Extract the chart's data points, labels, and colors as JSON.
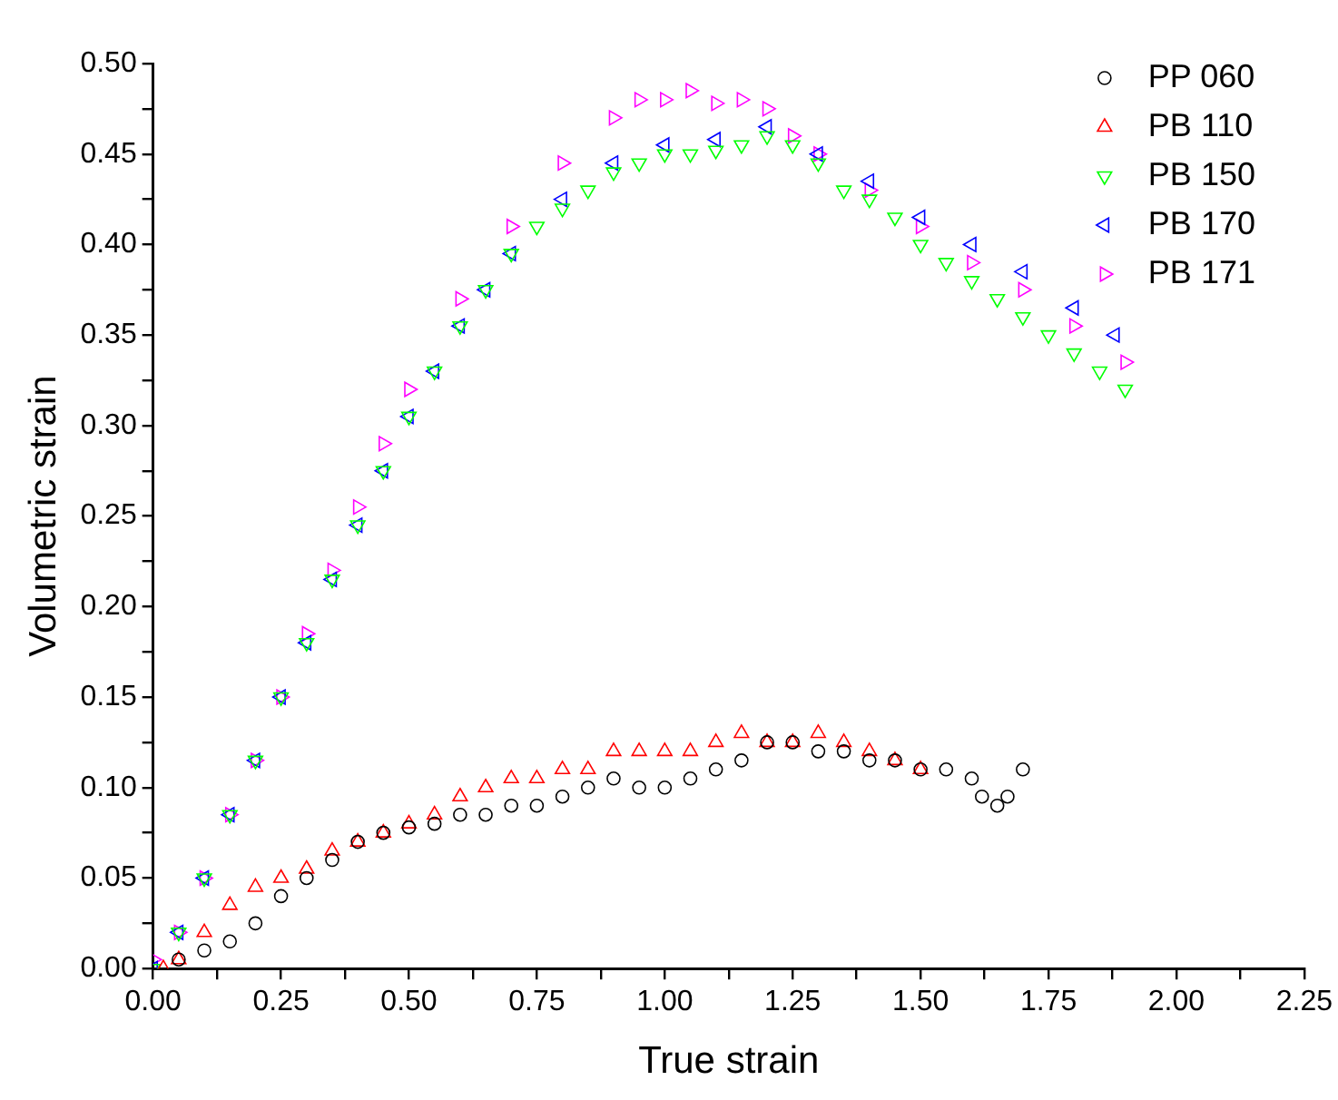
{
  "chart_data": {
    "type": "scatter",
    "xlabel": "True strain",
    "ylabel": "Volumetric strain",
    "legend": "top right",
    "grid": false,
    "xlim": [
      0,
      2.25
    ],
    "ylim": [
      0,
      0.5
    ],
    "xticks": [
      {
        "value": 0,
        "label": "0.00"
      },
      {
        "value": 0.125,
        "label": null
      },
      {
        "value": 0.25,
        "label": "0.25"
      },
      {
        "value": 0.375,
        "label": null
      },
      {
        "value": 0.5,
        "label": "0.50"
      },
      {
        "value": 0.625,
        "label": null
      },
      {
        "value": 0.75,
        "label": "0.75"
      },
      {
        "value": 0.875,
        "label": null
      },
      {
        "value": 1,
        "label": "1.00"
      },
      {
        "value": 1.125,
        "label": null
      },
      {
        "value": 1.25,
        "label": "1.25"
      },
      {
        "value": 1.375,
        "label": null
      },
      {
        "value": 1.5,
        "label": "1.50"
      },
      {
        "value": 1.625,
        "label": null
      },
      {
        "value": 1.75,
        "label": "1.75"
      },
      {
        "value": 1.875,
        "label": null
      },
      {
        "value": 2,
        "label": "2.00"
      },
      {
        "value": 2.125,
        "label": null
      },
      {
        "value": 2.25,
        "label": "2.25"
      }
    ],
    "yticks": [
      {
        "value": 0,
        "label": "0.00"
      },
      {
        "value": 0.025,
        "label": null
      },
      {
        "value": 0.05,
        "label": "0.05"
      },
      {
        "value": 0.075,
        "label": null
      },
      {
        "value": 0.1,
        "label": "0.10"
      },
      {
        "value": 0.125,
        "label": null
      },
      {
        "value": 0.15,
        "label": "0.15"
      },
      {
        "value": 0.175,
        "label": null
      },
      {
        "value": 0.2,
        "label": "0.20"
      },
      {
        "value": 0.225,
        "label": null
      },
      {
        "value": 0.25,
        "label": "0.25"
      },
      {
        "value": 0.275,
        "label": null
      },
      {
        "value": 0.3,
        "label": "0.30"
      },
      {
        "value": 0.325,
        "label": null
      },
      {
        "value": 0.35,
        "label": "0.35"
      },
      {
        "value": 0.375,
        "label": null
      },
      {
        "value": 0.4,
        "label": "0.40"
      },
      {
        "value": 0.425,
        "label": null
      },
      {
        "value": 0.45,
        "label": "0.45"
      },
      {
        "value": 0.475,
        "label": null
      },
      {
        "value": 0.5,
        "label": "0.50"
      }
    ],
    "series": [
      {
        "name": "PP 060",
        "color": "#000000",
        "marker": "circle",
        "x": [
          0.05,
          0.1,
          0.15,
          0.2,
          0.25,
          0.3,
          0.35,
          0.4,
          0.45,
          0.5,
          0.55,
          0.6,
          0.65,
          0.7,
          0.75,
          0.8,
          0.85,
          0.9,
          0.95,
          1.0,
          1.05,
          1.1,
          1.15,
          1.2,
          1.25,
          1.3,
          1.35,
          1.4,
          1.45,
          1.5,
          1.55,
          1.6,
          1.62,
          1.65,
          1.67,
          1.7
        ],
        "values": [
          0.005,
          0.01,
          0.015,
          0.025,
          0.04,
          0.05,
          0.06,
          0.07,
          0.075,
          0.078,
          0.08,
          0.085,
          0.085,
          0.09,
          0.09,
          0.095,
          0.1,
          0.105,
          0.1,
          0.1,
          0.105,
          0.11,
          0.115,
          0.125,
          0.125,
          0.12,
          0.12,
          0.115,
          0.115,
          0.11,
          0.11,
          0.105,
          0.095,
          0.09,
          0.095,
          0.11
        ]
      },
      {
        "name": "PB 110",
        "color": "#ff0000",
        "marker": "triangle",
        "x": [
          0.02,
          0.05,
          0.1,
          0.15,
          0.2,
          0.25,
          0.3,
          0.35,
          0.4,
          0.45,
          0.5,
          0.55,
          0.6,
          0.65,
          0.7,
          0.75,
          0.8,
          0.85,
          0.9,
          0.95,
          1.0,
          1.05,
          1.1,
          1.15,
          1.2,
          1.25,
          1.3,
          1.35,
          1.4,
          1.45,
          1.5
        ],
        "values": [
          0,
          0.005,
          0.02,
          0.035,
          0.045,
          0.05,
          0.055,
          0.065,
          0.07,
          0.075,
          0.08,
          0.085,
          0.095,
          0.1,
          0.105,
          0.105,
          0.11,
          0.11,
          0.12,
          0.12,
          0.12,
          0.12,
          0.125,
          0.13,
          0.125,
          0.125,
          0.13,
          0.125,
          0.12,
          0.115,
          0.11
        ]
      },
      {
        "name": "PB 150",
        "color": "#00ff00",
        "marker": "triangle",
        "x": [
          0,
          0.05,
          0.1,
          0.15,
          0.2,
          0.25,
          0.3,
          0.35,
          0.4,
          0.45,
          0.5,
          0.55,
          0.6,
          0.65,
          0.7,
          0.75,
          0.8,
          0.85,
          0.9,
          0.95,
          1.0,
          1.05,
          1.1,
          1.15,
          1.2,
          1.25,
          1.3,
          1.35,
          1.4,
          1.45,
          1.5,
          1.55,
          1.6,
          1.65,
          1.7,
          1.75,
          1.8,
          1.85,
          1.9
        ],
        "values": [
          0,
          0.02,
          0.05,
          0.085,
          0.115,
          0.15,
          0.18,
          0.215,
          0.245,
          0.275,
          0.305,
          0.33,
          0.355,
          0.375,
          0.395,
          0.41,
          0.42,
          0.43,
          0.44,
          0.445,
          0.45,
          0.45,
          0.452,
          0.455,
          0.46,
          0.455,
          0.445,
          0.43,
          0.425,
          0.415,
          0.4,
          0.39,
          0.38,
          0.37,
          0.36,
          0.35,
          0.34,
          0.33,
          0.32
        ]
      },
      {
        "name": "PB 170",
        "color": "#0000ff",
        "marker": "triangle",
        "x": [
          0,
          0.05,
          0.1,
          0.15,
          0.2,
          0.25,
          0.3,
          0.35,
          0.4,
          0.45,
          0.5,
          0.55,
          0.6,
          0.65,
          0.7,
          0.8,
          0.9,
          1.0,
          1.1,
          1.2,
          1.3,
          1.4,
          1.5,
          1.6,
          1.7,
          1.8,
          1.88
        ],
        "values": [
          0,
          0.02,
          0.05,
          0.085,
          0.115,
          0.15,
          0.18,
          0.215,
          0.245,
          0.275,
          0.305,
          0.33,
          0.355,
          0.375,
          0.395,
          0.425,
          0.445,
          0.455,
          0.458,
          0.465,
          0.45,
          0.435,
          0.415,
          0.4,
          0.385,
          0.365,
          0.35
        ]
      },
      {
        "name": "PB 171",
        "color": "#ff00ff",
        "marker": "triangle",
        "x": [
          0,
          0.05,
          0.1,
          0.15,
          0.2,
          0.25,
          0.3,
          0.35,
          0.4,
          0.45,
          0.5,
          0.6,
          0.7,
          0.8,
          0.9,
          0.95,
          1.0,
          1.05,
          1.1,
          1.15,
          1.2,
          1.25,
          1.3,
          1.4,
          1.5,
          1.6,
          1.7,
          1.8,
          1.9
        ],
        "values": [
          0.005,
          0.02,
          0.05,
          0.085,
          0.115,
          0.15,
          0.185,
          0.22,
          0.255,
          0.29,
          0.32,
          0.37,
          0.41,
          0.445,
          0.47,
          0.48,
          0.48,
          0.485,
          0.478,
          0.48,
          0.475,
          0.46,
          0.45,
          0.43,
          0.41,
          0.39,
          0.375,
          0.355,
          0.335
        ]
      }
    ]
  }
}
